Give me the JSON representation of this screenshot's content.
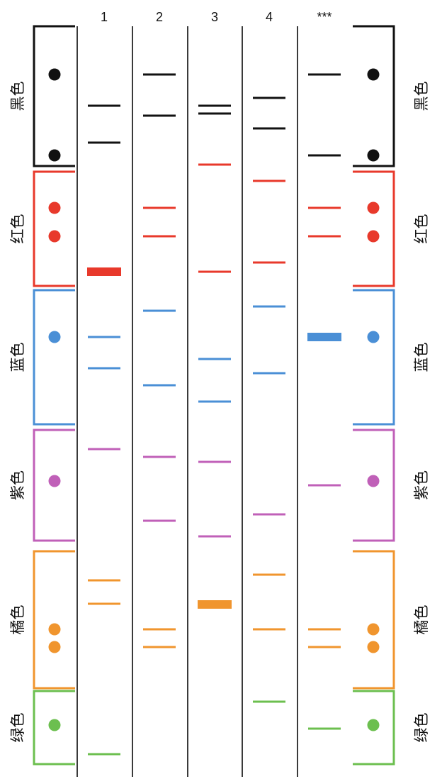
{
  "colors": {
    "black": "#111111",
    "red": "#e8392b",
    "blue": "#4a8fd6",
    "purple": "#c060b8",
    "orange": "#f0952e",
    "green": "#6cbf4f",
    "lane_rule": "#3a3a3a"
  },
  "lane_headers": [
    "1",
    "2",
    "3",
    "4",
    "***"
  ],
  "groups": [
    {
      "key": "black",
      "label": "黑色",
      "dots": 2
    },
    {
      "key": "red",
      "label": "红色",
      "dots": 2
    },
    {
      "key": "blue",
      "label": "蓝色",
      "dots": 1
    },
    {
      "key": "purple",
      "label": "紫色",
      "dots": 1
    },
    {
      "key": "orange",
      "label": "橘色",
      "dots": 2
    },
    {
      "key": "green",
      "label": "绿色",
      "dots": 1
    }
  ],
  "lanes": [
    {
      "name": "1",
      "bands": [
        {
          "color": "black"
        },
        {
          "color": "black"
        },
        {
          "color": "red",
          "thick": true
        },
        {
          "color": "blue"
        },
        {
          "color": "blue"
        },
        {
          "color": "purple"
        },
        {
          "color": "orange"
        },
        {
          "color": "orange"
        },
        {
          "color": "green"
        }
      ]
    },
    {
      "name": "2",
      "bands": [
        {
          "color": "black"
        },
        {
          "color": "black"
        },
        {
          "color": "red"
        },
        {
          "color": "red"
        },
        {
          "color": "blue"
        },
        {
          "color": "blue"
        },
        {
          "color": "purple"
        },
        {
          "color": "purple"
        },
        {
          "color": "orange"
        },
        {
          "color": "orange"
        }
      ]
    },
    {
      "name": "3",
      "bands": [
        {
          "color": "black"
        },
        {
          "color": "black"
        },
        {
          "color": "red"
        },
        {
          "color": "red"
        },
        {
          "color": "blue"
        },
        {
          "color": "blue"
        },
        {
          "color": "purple"
        },
        {
          "color": "purple"
        },
        {
          "color": "orange",
          "thick": true
        }
      ]
    },
    {
      "name": "4",
      "bands": [
        {
          "color": "black"
        },
        {
          "color": "black"
        },
        {
          "color": "red"
        },
        {
          "color": "red"
        },
        {
          "color": "blue"
        },
        {
          "color": "blue"
        },
        {
          "color": "purple"
        },
        {
          "color": "orange"
        },
        {
          "color": "orange"
        },
        {
          "color": "green"
        }
      ]
    },
    {
      "name": "***",
      "bands": [
        {
          "color": "black"
        },
        {
          "color": "black"
        },
        {
          "color": "red"
        },
        {
          "color": "red"
        },
        {
          "color": "blue",
          "thick": true
        },
        {
          "color": "purple"
        },
        {
          "color": "orange"
        },
        {
          "color": "orange"
        },
        {
          "color": "green"
        }
      ]
    }
  ]
}
